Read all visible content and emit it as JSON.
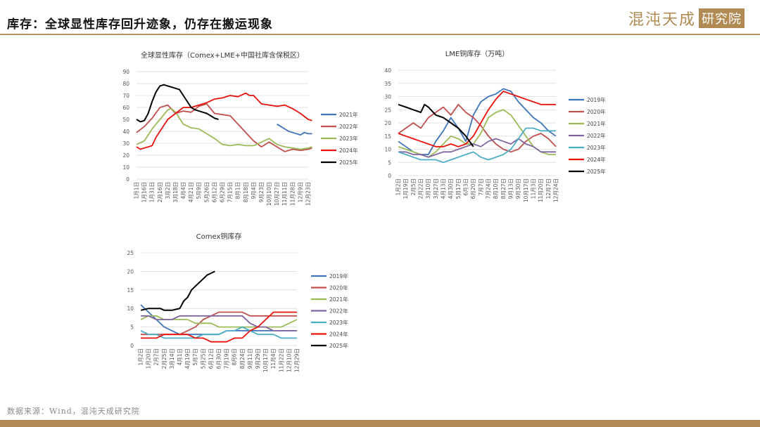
{
  "header": {
    "title": "库存：全球显性库存回升迹象，仍存在搬运现象",
    "brand_name": "混沌天成",
    "brand_box": "研究院"
  },
  "footer": {
    "source": "数据来源：Wind，混沌天成研究院"
  },
  "colors": {
    "2019年": "#3e74b8",
    "2020年": "#c0504d",
    "2021年": "#9bbb59",
    "2022年": "#8064a2",
    "2023年": "#4bacc6",
    "2024年": "#e8120c",
    "2025年": "#000000",
    "2021年_global": "#3e74b8",
    "2022年_global": "#c0504d"
  },
  "chart_data": [
    {
      "type": "line",
      "title": "全球显性库存（Comex+LME+中国社库含保税区）",
      "ylim": [
        0,
        90
      ],
      "yticks": [
        0,
        10,
        20,
        30,
        40,
        50,
        60,
        70,
        80,
        90
      ],
      "xticks": [
        "1月1日",
        "1月16日",
        "1月31日",
        "2月16日",
        "3月2日",
        "3月18日",
        "4月4日",
        "4月21日",
        "5月9日",
        "5月26日",
        "6月12日",
        "6月29日",
        "7月15日",
        "8月1日",
        "8月18日",
        "9月4日",
        "9月23日",
        "10月10日",
        "10月27日",
        "11月11日",
        "11月28日",
        "12月9日",
        "12月23日"
      ],
      "series": [
        {
          "name": "2021年",
          "color": "#3e74b8",
          "x": [
            18,
            18.5,
            19,
            19.5,
            20,
            20.5,
            21,
            21.5,
            22,
            22.5
          ],
          "values": [
            46,
            44,
            42,
            40,
            39,
            38,
            37,
            39,
            38,
            38
          ]
        },
        {
          "name": "2022年",
          "color": "#c0504d",
          "x": [
            0,
            1,
            2,
            3,
            4,
            5,
            6,
            7,
            8,
            9,
            10,
            11,
            12,
            13,
            14,
            15,
            16,
            17,
            18,
            19,
            20,
            21,
            22,
            22.5
          ],
          "values": [
            39,
            44,
            51,
            60,
            62,
            55,
            57,
            56,
            61,
            63,
            55,
            54,
            53,
            46,
            39,
            32,
            27,
            31,
            27,
            23,
            25,
            24,
            25,
            26
          ]
        },
        {
          "name": "2023年",
          "color": "#9bbb59",
          "x": [
            0,
            1,
            2,
            3,
            4,
            4.5,
            5,
            6,
            7,
            8,
            9,
            10,
            11,
            12,
            13,
            14,
            15,
            16,
            17,
            18,
            19,
            20,
            21,
            22,
            22.5
          ],
          "values": [
            29,
            32,
            42,
            50,
            58,
            59,
            56,
            46,
            43,
            42,
            38,
            34,
            29,
            28,
            29,
            28,
            28,
            31,
            34,
            29,
            27,
            26,
            25,
            26,
            27
          ]
        },
        {
          "name": "2024年",
          "color": "#e8120c",
          "x": [
            0,
            0.5,
            1,
            2,
            2.5,
            3,
            4,
            5,
            6,
            7,
            8,
            9,
            10,
            11,
            12,
            13,
            14,
            14.5,
            15,
            16,
            17,
            18,
            19,
            20,
            21,
            22,
            22.5
          ],
          "values": [
            27,
            25,
            26,
            28,
            35,
            40,
            50,
            55,
            60,
            60,
            62,
            64,
            67,
            68,
            70,
            69,
            72,
            70,
            70,
            63,
            62,
            61,
            62,
            59,
            55,
            50,
            49
          ]
        },
        {
          "name": "2025年",
          "color": "#000000",
          "x": [
            0,
            0.5,
            1,
            1.5,
            2,
            2.5,
            3,
            3.5,
            4,
            4.5,
            5,
            5.5,
            6,
            6.5,
            7,
            7.5,
            8,
            8.5,
            9,
            9.5,
            10,
            10.5
          ],
          "values": [
            50,
            48,
            49,
            55,
            65,
            73,
            78,
            79,
            78,
            77,
            76,
            75,
            70,
            65,
            60,
            58,
            57,
            56,
            55,
            53,
            51,
            50
          ]
        }
      ],
      "legend": [
        "2021年",
        "2022年",
        "2023年",
        "2024年",
        "2025年"
      ],
      "legend_position": "right"
    },
    {
      "type": "line",
      "title": "LME铜库存（万吨）",
      "ylim": [
        0,
        40
      ],
      "yticks": [
        0,
        5,
        10,
        15,
        20,
        25,
        30,
        35,
        40
      ],
      "xticks": [
        "1月2日",
        "1月19日",
        "2月5日",
        "2月22日",
        "3月10日",
        "3月27日",
        "4月13日",
        "4月30日",
        "5月17日",
        "6月3日",
        "6月20日",
        "7月7日",
        "7月24日",
        "8月10日",
        "8月27日",
        "9月13日",
        "9月30日",
        "10月17日",
        "11月3日",
        "11月20日",
        "12月7日",
        "12月24日"
      ],
      "series": [
        {
          "name": "2019年",
          "color": "#3e74b8",
          "x": [
            0,
            1,
            2,
            3,
            4,
            5,
            6,
            7,
            8,
            9,
            10,
            11,
            12,
            13,
            14,
            15,
            16,
            17,
            18,
            19,
            20,
            21
          ],
          "values": [
            13,
            11,
            9,
            8,
            8,
            13,
            17,
            22,
            18,
            13,
            23,
            28,
            30,
            31,
            33,
            32,
            28,
            25,
            22,
            20,
            17,
            15
          ]
        },
        {
          "name": "2020年",
          "color": "#c0504d",
          "x": [
            0,
            1,
            2,
            3,
            4,
            5,
            6,
            7,
            8,
            9,
            10,
            11,
            12,
            13,
            14,
            15,
            16,
            17,
            18,
            19,
            20,
            21
          ],
          "values": [
            16,
            18,
            20,
            18,
            22,
            24,
            26,
            23,
            27,
            24,
            22,
            19,
            15,
            12,
            10,
            9,
            10,
            13,
            15,
            16,
            14,
            11
          ]
        },
        {
          "name": "2021年",
          "color": "#9bbb59",
          "x": [
            0,
            1,
            2,
            3,
            4,
            5,
            6,
            7,
            8,
            9,
            10,
            11,
            12,
            13,
            14,
            15,
            16,
            17,
            18,
            19,
            20,
            21
          ],
          "values": [
            11,
            10,
            9,
            8,
            7,
            9,
            12,
            15,
            14,
            12,
            12,
            16,
            22,
            24,
            25,
            23,
            19,
            15,
            11,
            9,
            8,
            8
          ]
        },
        {
          "name": "2022年",
          "color": "#8064a2",
          "x": [
            0,
            1,
            2,
            3,
            4,
            5,
            6,
            7,
            8,
            9,
            10,
            11,
            12,
            13,
            14,
            15,
            16,
            17,
            18,
            19,
            20,
            21
          ],
          "values": [
            9,
            9,
            8,
            8,
            7,
            8,
            9,
            9,
            10,
            11,
            12,
            11,
            13,
            14,
            13,
            12,
            14,
            12,
            11,
            9,
            9,
            9
          ]
        },
        {
          "name": "2023年",
          "color": "#4bacc6",
          "x": [
            0,
            1,
            2,
            3,
            4,
            5,
            6,
            7,
            8,
            9,
            10,
            11,
            12,
            13,
            14,
            15,
            16,
            17,
            18,
            19,
            20,
            21
          ],
          "values": [
            9,
            8,
            7,
            6,
            6,
            6,
            5,
            6,
            7,
            8,
            9,
            7,
            6,
            7,
            8,
            10,
            14,
            18,
            18,
            17,
            17,
            17
          ]
        },
        {
          "name": "2024年",
          "color": "#e8120c",
          "x": [
            0,
            1,
            2,
            3,
            4,
            5,
            6,
            7,
            8,
            9,
            10,
            11,
            12,
            13,
            14,
            15,
            16,
            17,
            18,
            19,
            20,
            21
          ],
          "values": [
            16,
            15,
            14,
            13,
            12,
            11,
            11,
            12,
            11,
            12,
            15,
            20,
            25,
            29,
            32,
            31,
            30,
            29,
            28,
            27,
            27,
            27
          ]
        },
        {
          "name": "2025年",
          "color": "#000000",
          "x": [
            0,
            1,
            2,
            3,
            3.5,
            4,
            5,
            6,
            7,
            8,
            9,
            9.5,
            10
          ],
          "values": [
            27,
            26,
            25,
            24,
            27,
            26,
            23,
            22,
            20,
            18,
            15,
            13,
            11
          ]
        }
      ],
      "legend": [
        "2019年",
        "2020年",
        "2021年",
        "2022年",
        "2023年",
        "2024年",
        "2025年"
      ],
      "legend_position": "right"
    },
    {
      "type": "line",
      "title": "Comex铜库存",
      "ylim": [
        0,
        25
      ],
      "yticks": [
        0,
        5,
        10,
        15,
        20,
        25
      ],
      "xticks": [
        "1月2日",
        "1月20日",
        "2月7日",
        "2月25日",
        "3月14日",
        "4月1日",
        "4月19日",
        "5月7日",
        "5月25日",
        "6月12日",
        "6月30日",
        "7月19日",
        "8月6日",
        "8月24日",
        "9月11日",
        "9月29日",
        "10月17日",
        "11月4日",
        "11月22日",
        "12月10日",
        "12月29日"
      ],
      "series": [
        {
          "name": "2019年",
          "color": "#3e74b8",
          "x": [
            0,
            1,
            2,
            3,
            4,
            5,
            6,
            7,
            8,
            9,
            10,
            11,
            12,
            13,
            14,
            15,
            16,
            17,
            18,
            19,
            20
          ],
          "values": [
            11,
            9,
            7,
            5,
            4,
            3,
            3,
            3,
            3,
            3,
            3,
            4,
            4,
            4,
            4,
            4,
            4,
            4,
            4,
            4,
            4
          ]
        },
        {
          "name": "2020年",
          "color": "#c0504d",
          "x": [
            0,
            1,
            2,
            3,
            4,
            5,
            6,
            7,
            8,
            9,
            10,
            11,
            12,
            13,
            14,
            15,
            16,
            17,
            18,
            19,
            20
          ],
          "values": [
            3,
            3,
            3,
            3,
            3,
            3,
            4,
            5,
            7,
            8,
            9,
            9,
            9,
            9,
            8,
            8,
            8,
            8,
            8,
            8,
            8
          ]
        },
        {
          "name": "2021年",
          "color": "#9bbb59",
          "x": [
            0,
            1,
            2,
            3,
            4,
            5,
            6,
            7,
            8,
            9,
            10,
            11,
            12,
            13,
            14,
            15,
            16,
            17,
            18,
            19,
            20
          ],
          "values": [
            7,
            8,
            8,
            7,
            7,
            7,
            7,
            6,
            6,
            6,
            5,
            5,
            5,
            5,
            5,
            5,
            5,
            5,
            5,
            6,
            7
          ]
        },
        {
          "name": "2022年",
          "color": "#8064a2",
          "x": [
            0,
            1,
            2,
            3,
            4,
            5,
            6,
            7,
            8,
            9,
            10,
            11,
            12,
            13,
            14,
            15,
            16,
            17,
            18,
            19,
            20
          ],
          "values": [
            8,
            8,
            7,
            7,
            7,
            8,
            8,
            8,
            8,
            8,
            8,
            8,
            8,
            8,
            6,
            5,
            5,
            4,
            4,
            4,
            4
          ]
        },
        {
          "name": "2023年",
          "color": "#4bacc6",
          "x": [
            0,
            1,
            2,
            3,
            4,
            5,
            6,
            7,
            8,
            9,
            10,
            11,
            12,
            13,
            14,
            15,
            16,
            17,
            18,
            19,
            20
          ],
          "values": [
            4,
            3,
            3,
            2,
            2,
            2,
            2,
            2,
            3,
            3,
            3,
            4,
            4,
            5,
            4,
            3,
            3,
            3,
            2,
            2,
            2
          ]
        },
        {
          "name": "2024年",
          "color": "#e8120c",
          "x": [
            0,
            1,
            2,
            3,
            4,
            5,
            6,
            7,
            8,
            9,
            10,
            11,
            12,
            13,
            14,
            15,
            16,
            17,
            18,
            19,
            20
          ],
          "values": [
            2,
            2,
            2,
            3,
            3,
            3,
            3,
            2,
            2,
            1,
            1,
            1,
            2,
            2,
            4,
            5,
            7,
            9,
            9,
            9,
            9
          ]
        },
        {
          "name": "2025年",
          "color": "#000000",
          "x": [
            0,
            1,
            2,
            2.5,
            3,
            4,
            5,
            5.5,
            6,
            6.5,
            7,
            7.5,
            8,
            8.5,
            9,
            9.5
          ],
          "values": [
            9.5,
            10,
            10,
            10,
            9.5,
            9.5,
            10,
            12,
            13,
            15,
            16,
            17,
            18,
            19,
            19.5,
            20
          ]
        }
      ],
      "legend": [
        "2019年",
        "2020年",
        "2021年",
        "2022年",
        "2023年",
        "2024年",
        "2025年"
      ],
      "legend_position": "right"
    }
  ]
}
